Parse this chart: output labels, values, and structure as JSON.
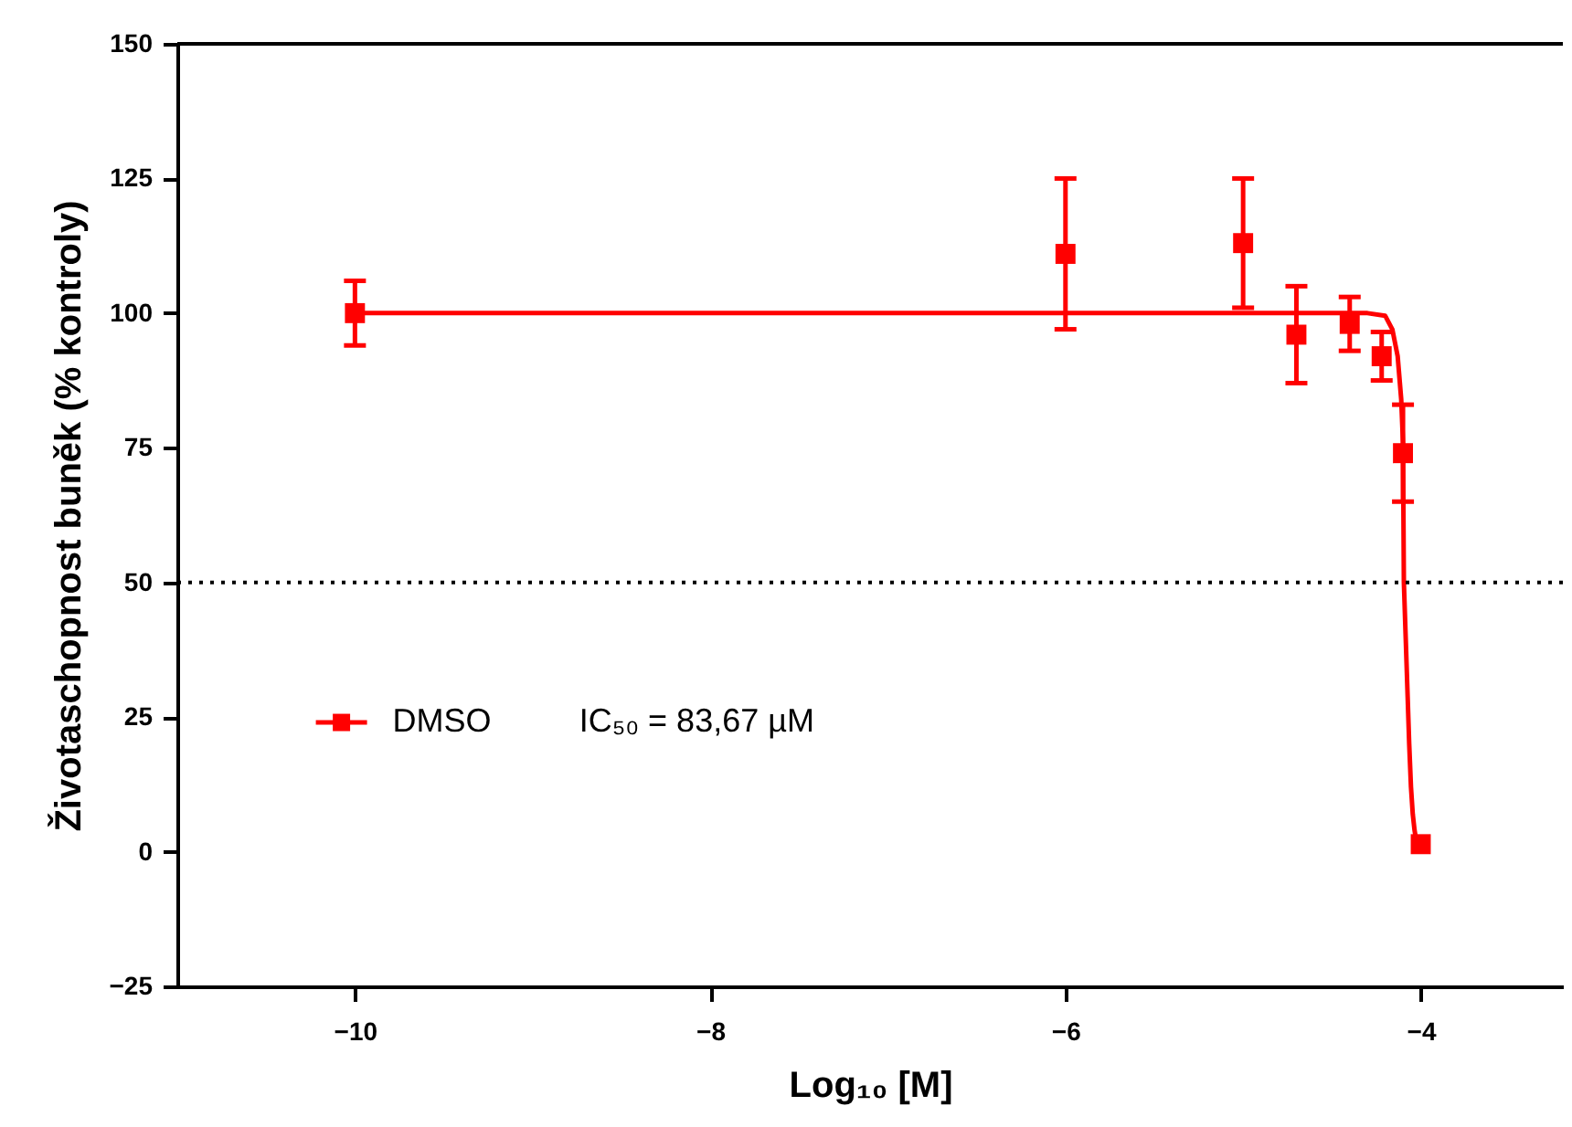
{
  "chart_data": {
    "type": "scatter",
    "xlabel": "Log₁₀ [M]",
    "ylabel": "Životaschopnost buněk (% kontroly)",
    "xlim": [
      -11,
      -3.2
    ],
    "xticks": [
      -10,
      -8,
      -6,
      -4
    ],
    "ylim": [
      -25,
      150
    ],
    "yticks": [
      -25,
      0,
      25,
      50,
      75,
      100,
      125,
      150
    ],
    "grid": false,
    "legend": "bottom left",
    "marker": "square",
    "series": [
      {
        "name": "DMSO",
        "color": "#ff0000",
        "x": [
          -10,
          -6,
          -5,
          -4.7,
          -4.4,
          -4.22,
          -4.1,
          -4.0
        ],
        "values": [
          100,
          111,
          113,
          96,
          98,
          92,
          74,
          1.4
        ],
        "errors": [
          6,
          14,
          12,
          9,
          5,
          4.5,
          9,
          null
        ]
      },
      {
        "type": "line",
        "color": "#ff0000",
        "line_style": "solid",
        "marker": "none",
        "x": [
          -10,
          -4.3,
          -4.2,
          -4.16,
          -4.13,
          -4.11,
          -4.1,
          -4.095,
          -4.085,
          -4.075,
          -4.065,
          -4.055,
          -4.045,
          -4.035,
          -4.025
        ],
        "values": [
          100,
          100,
          99.5,
          97,
          92,
          84,
          76,
          50,
          40,
          30,
          20,
          12,
          7,
          4,
          2
        ]
      }
    ],
    "ref_lines": [
      {
        "axis": "y",
        "value": 50,
        "color": "#000000",
        "line_style": "dotted"
      }
    ],
    "annotations": [
      "IC₅₀ = 83,67 µM"
    ]
  }
}
